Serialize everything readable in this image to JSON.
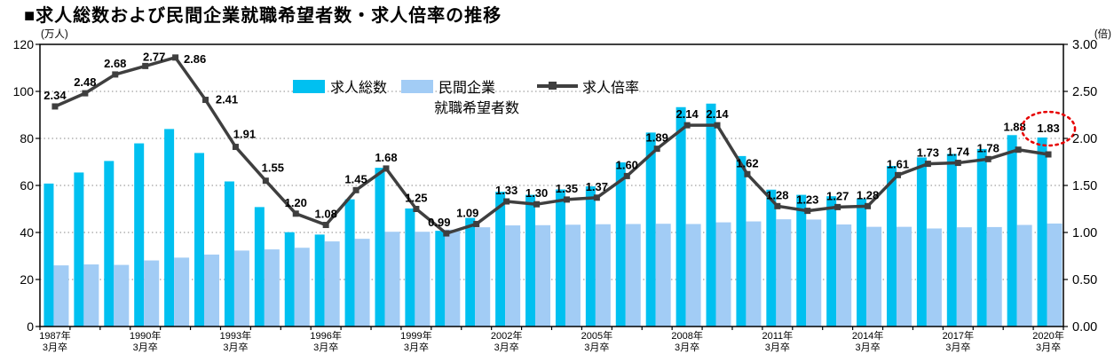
{
  "title": "■求人総数および民間企業就職希望者数・求人倍率の推移",
  "chart_data": {
    "type": "combo-bar-line",
    "categories": [
      "1987",
      "1988",
      "1989",
      "1990",
      "1991",
      "1992",
      "1993",
      "1994",
      "1995",
      "1996",
      "1997",
      "1998",
      "1999",
      "2000",
      "2001",
      "2002",
      "2003",
      "2004",
      "2005",
      "2006",
      "2007",
      "2008",
      "2009",
      "2010",
      "2011",
      "2012",
      "2013",
      "2014",
      "2015",
      "2016",
      "2017",
      "2018",
      "2019",
      "2020"
    ],
    "series": [
      {
        "name": "求人総数",
        "kind": "bar",
        "axis": "left",
        "color": "#00c0f0",
        "values": [
          60.8,
          65.5,
          70.4,
          77.9,
          84.0,
          73.8,
          61.7,
          50.8,
          40.1,
          39.1,
          54.1,
          67.5,
          50.2,
          40.7,
          46.2,
          57.3,
          56.0,
          58.3,
          59.6,
          69.8,
          82.5,
          93.3,
          94.8,
          72.5,
          58.2,
          56.0,
          55.4,
          54.3,
          68.3,
          71.9,
          73.4,
          75.5,
          81.4,
          80.4
        ]
      },
      {
        "name": "民間企業就職希望者数",
        "kind": "bar",
        "axis": "left",
        "color": "#a2ccf5",
        "values": [
          26.0,
          26.4,
          26.2,
          28.1,
          29.3,
          30.6,
          32.3,
          32.8,
          33.5,
          36.2,
          37.3,
          40.3,
          40.3,
          41.2,
          42.2,
          43.0,
          43.1,
          43.3,
          43.5,
          43.6,
          43.7,
          43.6,
          44.3,
          44.7,
          45.6,
          45.5,
          43.4,
          42.4,
          42.4,
          41.7,
          42.2,
          42.3,
          43.2,
          43.8
        ]
      },
      {
        "name": "求人倍率",
        "kind": "line",
        "axis": "right",
        "color": "#3f3f3f",
        "values": [
          2.34,
          2.48,
          2.68,
          2.77,
          2.86,
          2.41,
          1.91,
          1.55,
          1.2,
          1.08,
          1.45,
          1.68,
          1.25,
          0.99,
          1.09,
          1.33,
          1.3,
          1.35,
          1.37,
          1.6,
          1.89,
          2.14,
          2.14,
          1.62,
          1.28,
          1.23,
          1.27,
          1.28,
          1.61,
          1.73,
          1.74,
          1.78,
          1.88,
          1.83
        ],
        "point_labels": [
          "2.34",
          "2.48",
          "2.68",
          "2.77",
          "2.86",
          "2.41",
          "1.91",
          "1.55",
          "1.20",
          "1.08",
          "1.45",
          "1.68",
          "1.25",
          "0.99",
          "1.09",
          "1.33",
          "1.30",
          "1.35",
          "1.37",
          "1.60",
          "1.89",
          "2.14",
          "2.14",
          "1.62",
          "1.28",
          "1.23",
          "1.27",
          "1.28",
          "1.61",
          "1.73",
          "1.74",
          "1.78",
          "1.88",
          "1.83"
        ]
      }
    ],
    "left_axis": {
      "unit": "(万人)",
      "ticks": [
        0,
        20,
        40,
        60,
        80,
        100,
        120
      ],
      "min": 0,
      "max": 120
    },
    "right_axis": {
      "unit": "(倍)",
      "ticks": [
        "0.00",
        "0.50",
        "1.00",
        "1.50",
        "2.00",
        "2.50",
        "3.00"
      ],
      "min": 0,
      "max": 3
    },
    "x_axis": {
      "tick_years": [
        "1987年",
        "1990年",
        "1993年",
        "1996年",
        "1999年",
        "2002年",
        "2005年",
        "2008年",
        "2011年",
        "2014年",
        "2017年",
        "2020年"
      ],
      "tick_line2": "3月卒",
      "shown_every": 3
    },
    "legend": {
      "bar1_label": "求人総数",
      "bar2_label_line1": "民間企業",
      "bar2_label_line2": "就職希望者数",
      "line_label": "求人倍率"
    },
    "grid": "horizontal-dotted",
    "annotation": {
      "shape": "dotted-ellipse",
      "around_label": "1.83",
      "target_category": "2020",
      "color": "#e60000"
    },
    "colors": {
      "bar1": "#00c0f0",
      "bar2": "#a2ccf5",
      "line": "#3f3f3f",
      "grid": "#8a8a8a",
      "axis": "#000000",
      "annotation": "#e60000"
    }
  }
}
